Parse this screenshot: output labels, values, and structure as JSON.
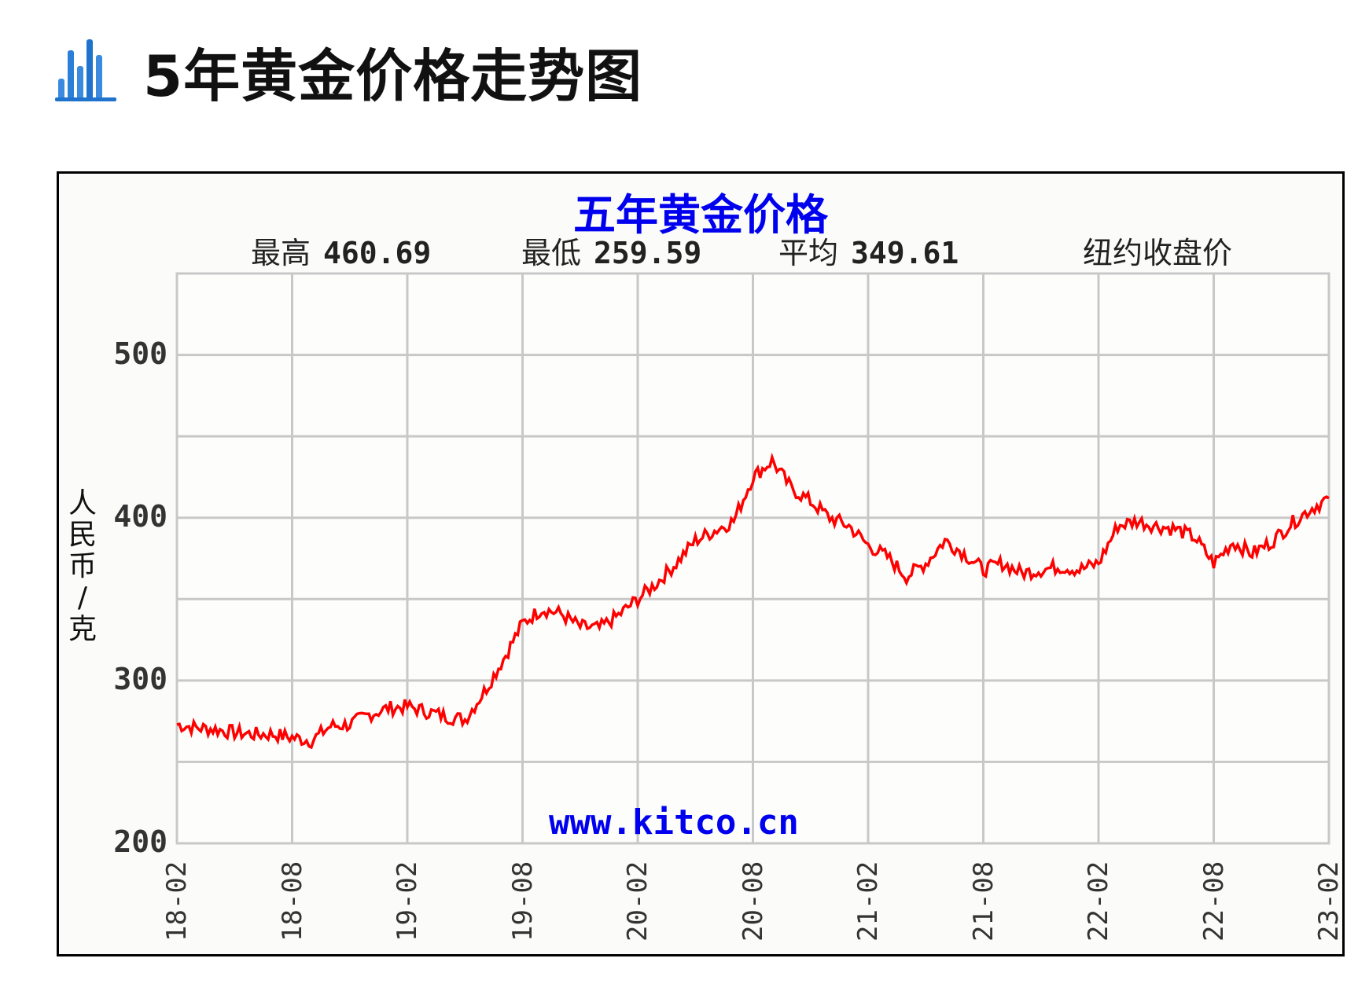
{
  "page": {
    "title": "5年黄金价格走势图",
    "icon": "bar-chart-icon",
    "icon_color": "#2a7fd8"
  },
  "chart": {
    "title": "五年黄金价格",
    "title_color": "#0000ee",
    "stats": [
      {
        "label": "最高",
        "value": "460.69"
      },
      {
        "label": "最低",
        "value": "259.59"
      },
      {
        "label": "平均",
        "value": "349.61"
      }
    ],
    "note": "纽约收盘价",
    "ylabel": "人民币/克",
    "watermark": "www.kitco.cn",
    "line_color": "#ff0000",
    "grid_color": "#c8c8c8"
  },
  "chart_data": {
    "type": "line",
    "title": "五年黄金价格",
    "subtitle": "最高 460.69  最低 259.59  平均 349.61  纽约收盘价",
    "xlabel": "",
    "ylabel": "人民币/克",
    "ylim": [
      200,
      550
    ],
    "yticks": [
      200,
      300,
      400,
      500
    ],
    "y_gridlines": [
      200,
      250,
      300,
      350,
      400,
      450,
      500,
      550
    ],
    "grid": true,
    "legend": null,
    "xticks": [
      "18-02",
      "18-08",
      "19-02",
      "19-08",
      "20-02",
      "20-08",
      "21-02",
      "21-08",
      "22-02",
      "22-08",
      "23-02"
    ],
    "x": [
      "18-02",
      "18-03",
      "18-04",
      "18-05",
      "18-06",
      "18-07",
      "18-08",
      "18-09",
      "18-10",
      "18-11",
      "18-12",
      "19-01",
      "19-02",
      "19-03",
      "19-04",
      "19-05",
      "19-06",
      "19-07",
      "19-08",
      "19-09",
      "19-10",
      "19-11",
      "19-12",
      "20-01",
      "20-02",
      "20-03",
      "20-04",
      "20-05",
      "20-06",
      "20-07",
      "20-08",
      "20-09",
      "20-10",
      "20-11",
      "20-12",
      "21-01",
      "21-02",
      "21-03",
      "21-04",
      "21-05",
      "21-06",
      "21-07",
      "21-08",
      "21-09",
      "21-10",
      "21-11",
      "21-12",
      "22-01",
      "22-02",
      "22-03",
      "22-04",
      "22-05",
      "22-06",
      "22-07",
      "22-08",
      "22-09",
      "22-10",
      "22-11",
      "22-12",
      "23-01",
      "23-02"
    ],
    "series": [
      {
        "name": "纽约收盘价 (人民币/克)",
        "values": [
          273,
          271,
          270,
          268,
          267,
          267,
          265,
          263,
          272,
          273,
          279,
          283,
          284,
          281,
          278,
          276,
          293,
          313,
          335,
          344,
          341,
          333,
          332,
          340,
          350,
          360,
          372,
          386,
          392,
          398,
          425,
          435,
          418,
          410,
          400,
          395,
          383,
          376,
          364,
          372,
          386,
          378,
          368,
          372,
          366,
          368,
          370,
          368,
          372,
          395,
          398,
          395,
          393,
          388,
          372,
          385,
          378,
          385,
          396,
          405,
          412
        ],
        "color": "#ff0000"
      }
    ],
    "annotations": [
      "www.kitco.cn"
    ]
  }
}
